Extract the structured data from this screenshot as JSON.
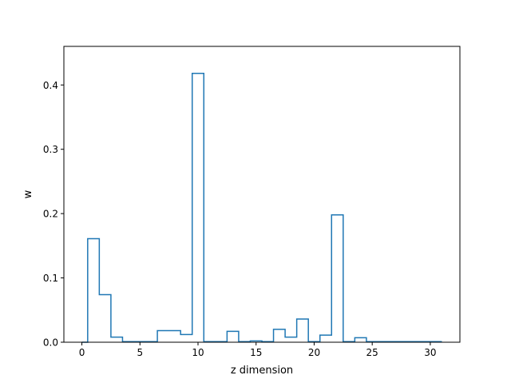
{
  "chart_data": {
    "type": "line",
    "style": "steps-mid",
    "title": "",
    "xlabel": "z dimension",
    "ylabel": "w",
    "xlim": [
      -1.55,
      32.55
    ],
    "ylim": [
      0,
      0.46
    ],
    "grid": false,
    "legend": "none",
    "x_ticks": [
      0,
      5,
      10,
      15,
      20,
      25,
      30
    ],
    "y_ticks": [
      0.0,
      0.1,
      0.2,
      0.3,
      0.4
    ],
    "y_tick_labels": [
      "0.0",
      "0.1",
      "0.2",
      "0.3",
      "0.4"
    ],
    "series": [
      {
        "color": "#1f77b4",
        "x": [
          0,
          1,
          2,
          3,
          4,
          5,
          6,
          7,
          8,
          9,
          10,
          11,
          12,
          13,
          14,
          15,
          16,
          17,
          18,
          19,
          20,
          21,
          22,
          23,
          24,
          25,
          26,
          27,
          28,
          29,
          30,
          31
        ],
        "y": [
          0.0,
          0.161,
          0.074,
          0.008,
          0.001,
          0.001,
          0.001,
          0.018,
          0.018,
          0.012,
          0.418,
          0.001,
          0.001,
          0.017,
          0.001,
          0.002,
          0.001,
          0.02,
          0.008,
          0.036,
          0.001,
          0.011,
          0.198,
          0.001,
          0.007,
          0.001,
          0.001,
          0.001,
          0.001,
          0.001,
          0.001,
          0.001
        ]
      }
    ]
  }
}
